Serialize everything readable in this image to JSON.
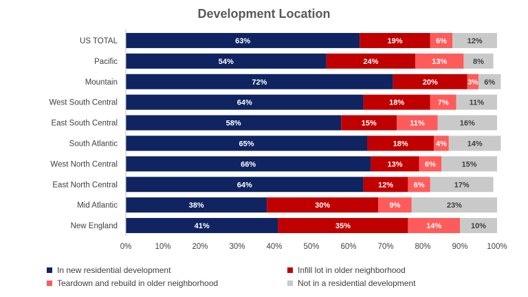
{
  "chart_data": {
    "type": "bar",
    "orientation": "horizontal",
    "stacked": true,
    "title": "Development Location",
    "categories": [
      "US TOTAL",
      "Pacific",
      "Mountain",
      "West South Central",
      "East South Central",
      "South Atlantic",
      "West North Central",
      "East North Central",
      "Mid Atlantic",
      "New England"
    ],
    "series": [
      {
        "name": "In new residential development",
        "color": "#0f2460",
        "values": [
          63,
          54,
          72,
          64,
          58,
          65,
          66,
          64,
          38,
          41
        ]
      },
      {
        "name": "Infill lot in older neighborhood",
        "color": "#c00000",
        "values": [
          19,
          24,
          20,
          18,
          15,
          18,
          13,
          12,
          30,
          35
        ]
      },
      {
        "name": "Teardown and rebuild in older neighborhood",
        "color": "#ff5b5b",
        "values": [
          6,
          13,
          3,
          7,
          11,
          4,
          6,
          6,
          9,
          14
        ]
      },
      {
        "name": "Not in a residential development",
        "color": "#c9c9c9",
        "values": [
          12,
          8,
          6,
          11,
          16,
          14,
          15,
          17,
          23,
          10
        ]
      }
    ],
    "xlim": [
      0,
      100
    ],
    "x_ticks": [
      "0%",
      "10%",
      "20%",
      "30%",
      "40%",
      "50%",
      "60%",
      "70%",
      "80%",
      "90%",
      "100%"
    ],
    "legend_position": "bottom",
    "grid": false
  }
}
